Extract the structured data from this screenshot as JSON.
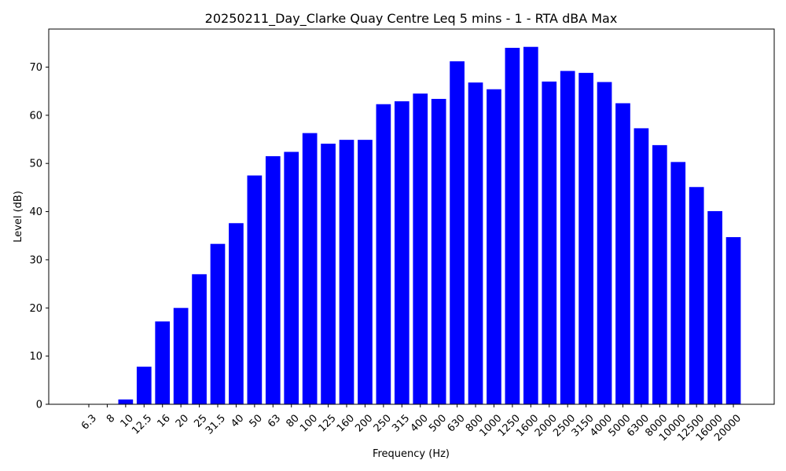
{
  "chart_data": {
    "type": "bar",
    "title": "20250211_Day_Clarke Quay Centre Leq 5 mins - 1 - RTA dBA Max",
    "xlabel": "Frequency (Hz)",
    "ylabel": "Level (dB)",
    "categories": [
      "6.3",
      "8",
      "10",
      "12.5",
      "16",
      "20",
      "25",
      "31.5",
      "40",
      "50",
      "63",
      "80",
      "100",
      "125",
      "160",
      "200",
      "250",
      "315",
      "400",
      "500",
      "630",
      "800",
      "1000",
      "1250",
      "1600",
      "2000",
      "2500",
      "3150",
      "4000",
      "5000",
      "6300",
      "8000",
      "10000",
      "12500",
      "16000",
      "20000"
    ],
    "values": [
      0,
      0,
      1.0,
      7.8,
      17.2,
      20.0,
      27.0,
      33.3,
      37.6,
      47.5,
      51.5,
      52.4,
      56.3,
      54.1,
      54.9,
      54.9,
      62.3,
      62.9,
      64.5,
      63.4,
      71.2,
      66.8,
      65.4,
      74.0,
      74.2,
      67.0,
      69.2,
      68.8,
      66.9,
      62.5,
      57.3,
      53.8,
      50.3,
      45.1,
      40.1,
      34.7
    ],
    "yticks": [
      0,
      10,
      20,
      30,
      40,
      50,
      60,
      70
    ],
    "ylim": [
      0,
      77.9
    ],
    "bar_color": "#0000ff",
    "grid": false,
    "legend": "none"
  }
}
